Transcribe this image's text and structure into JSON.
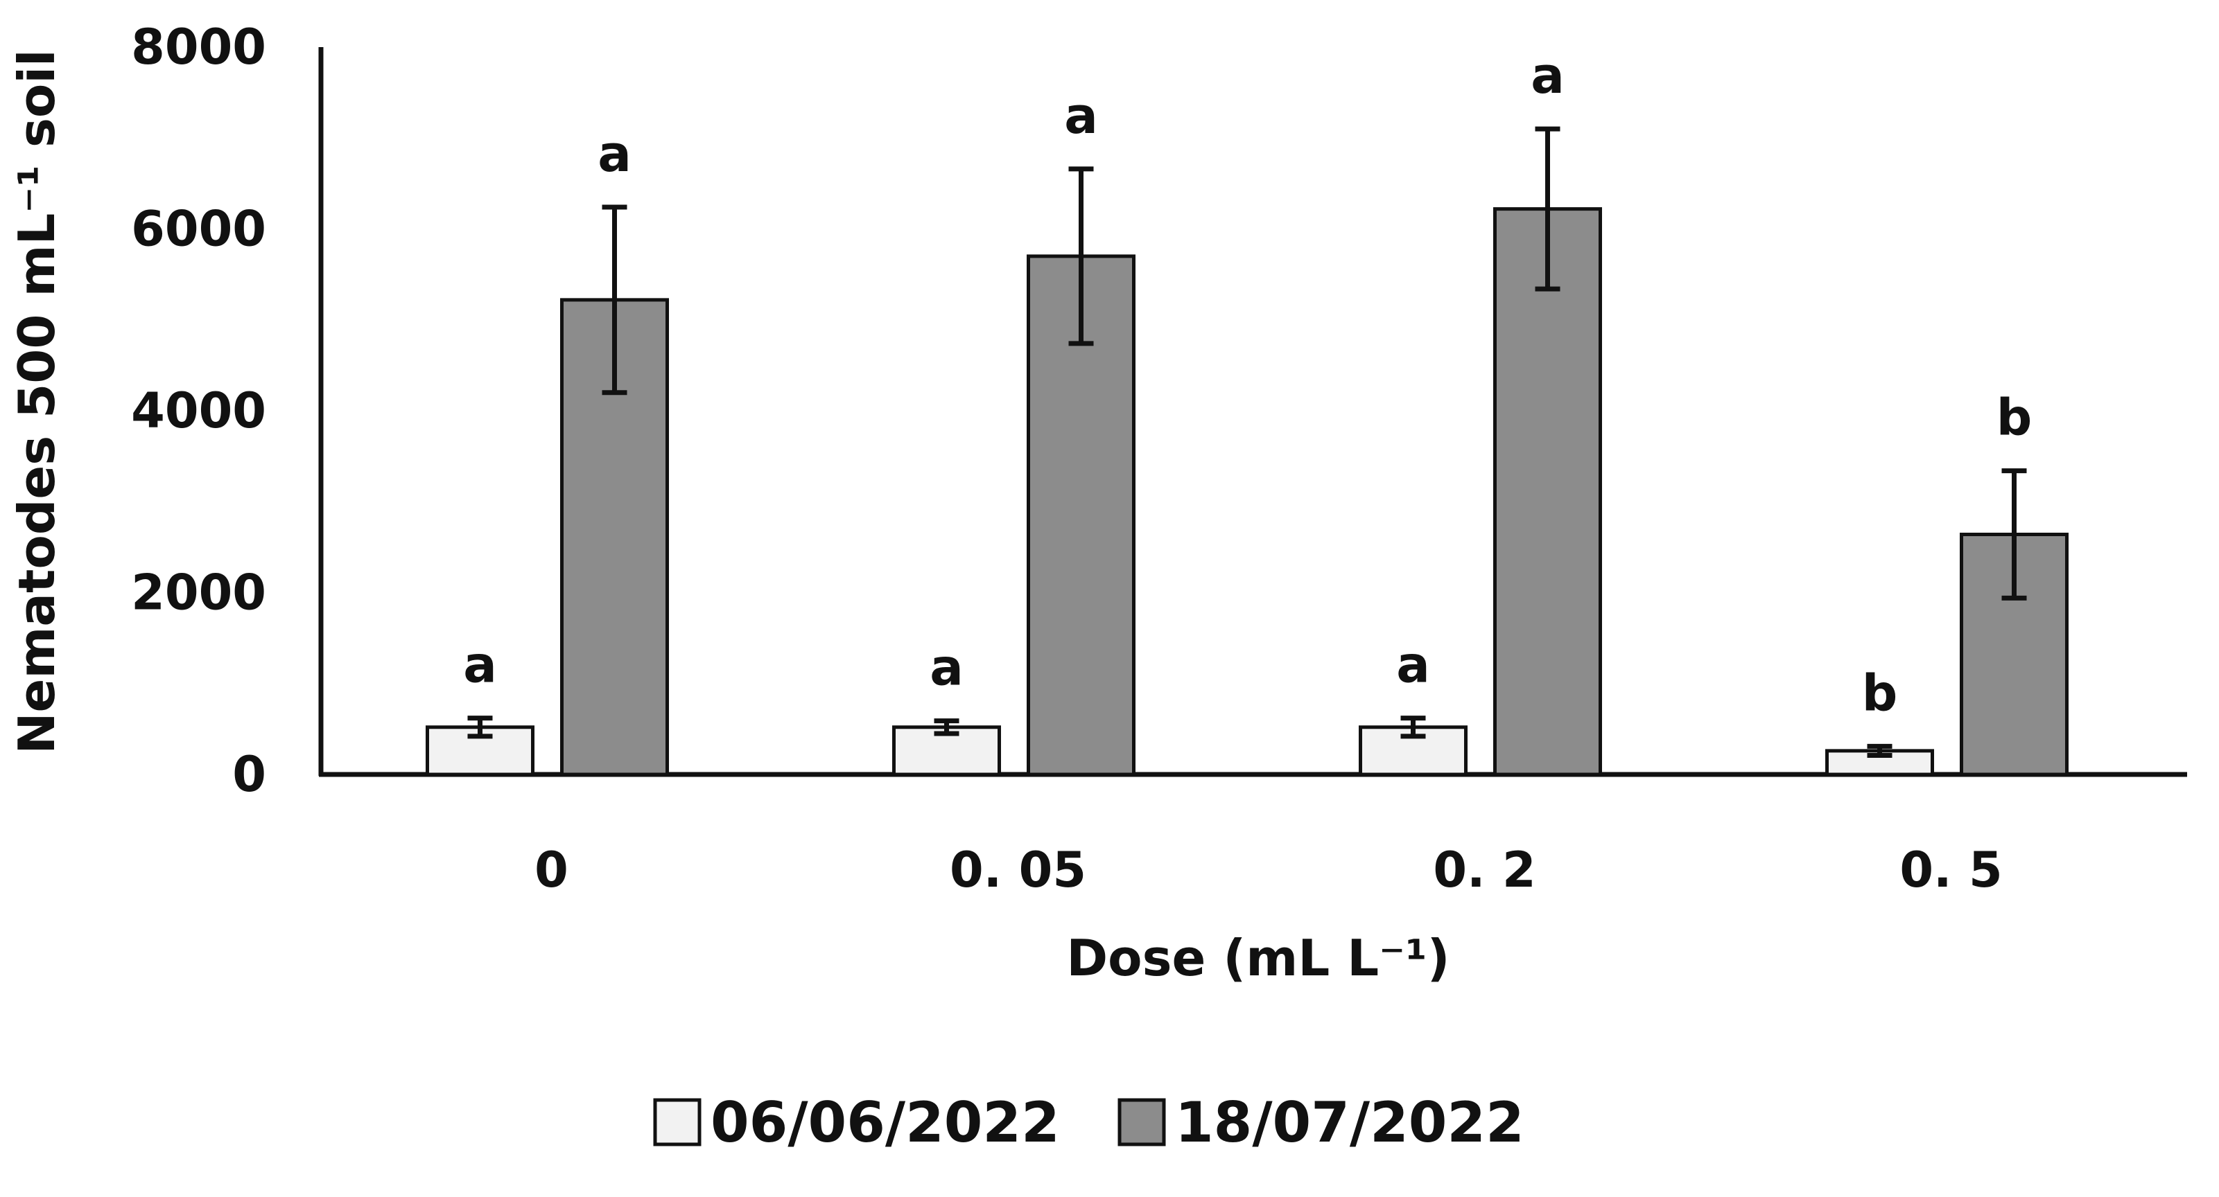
{
  "chart_data": {
    "type": "bar",
    "title": "",
    "xlabel": "Dose (mL L⁻¹)",
    "ylabel": "Nematodes 500 mL⁻¹ soil",
    "ylim": [
      0,
      8000
    ],
    "yticks": [
      0,
      2000,
      4000,
      6000,
      8000
    ],
    "ytick_labels": [
      "0",
      "2000",
      "4000",
      "6000",
      "8000"
    ],
    "categories": [
      "0",
      "0. 05",
      "0. 2",
      "0. 5"
    ],
    "grid": false,
    "legend_position": "bottom",
    "series": [
      {
        "name": "06/06/2022",
        "color": "#f2f2f2",
        "values": [
          520,
          520,
          520,
          260
        ],
        "errors": [
          100,
          70,
          100,
          50
        ],
        "significance": [
          "a",
          "a",
          "a",
          "b"
        ]
      },
      {
        "name": "18/07/2022",
        "color": "#8c8c8c",
        "values": [
          5220,
          5700,
          6220,
          2640
        ],
        "errors": [
          1020,
          960,
          880,
          700
        ],
        "significance": [
          "a",
          "a",
          "a",
          "b"
        ]
      }
    ]
  }
}
